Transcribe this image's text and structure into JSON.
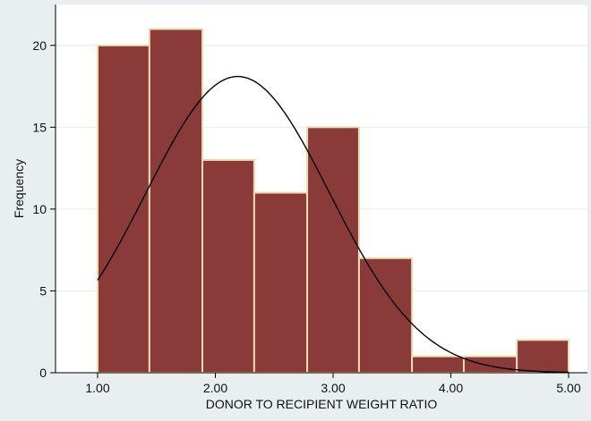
{
  "chart_data": {
    "type": "bar",
    "subtype": "histogram",
    "xlabel": "DONOR TO RECIPIENT WEIGHT RATIO",
    "ylabel": "Frequency",
    "xlim": [
      1.0,
      5.0
    ],
    "ylim": [
      0,
      22.5
    ],
    "x_ticks": [
      1.0,
      2.0,
      3.0,
      4.0,
      5.0
    ],
    "x_tick_labels": [
      "1.00",
      "2.00",
      "3.00",
      "4.00",
      "5.00"
    ],
    "y_ticks": [
      0,
      5,
      10,
      15,
      20
    ],
    "y_tick_labels": [
      "0",
      "5",
      "10",
      "15",
      "20"
    ],
    "bins": [
      {
        "x0": 1.0,
        "x1": 1.44,
        "value": 20
      },
      {
        "x0": 1.44,
        "x1": 1.89,
        "value": 21
      },
      {
        "x0": 1.89,
        "x1": 2.33,
        "value": 13
      },
      {
        "x0": 2.33,
        "x1": 2.78,
        "value": 11
      },
      {
        "x0": 2.78,
        "x1": 3.22,
        "value": 15
      },
      {
        "x0": 3.22,
        "x1": 3.67,
        "value": 7
      },
      {
        "x0": 3.67,
        "x1": 4.11,
        "value": 1
      },
      {
        "x0": 4.11,
        "x1": 4.56,
        "value": 1
      },
      {
        "x0": 4.56,
        "x1": 5.0,
        "value": 2
      }
    ],
    "normal_curve": {
      "mean": 2.19,
      "sd": 0.78,
      "peak": 18.1
    },
    "grid": true,
    "colors": {
      "bar_fill": "#8b3a3a",
      "bar_edge": "#eadbb0",
      "curve": "#000000",
      "plot_bg": "#ffffff",
      "outer_bg": "#e9eef1",
      "grid": "#e6eef2"
    }
  }
}
